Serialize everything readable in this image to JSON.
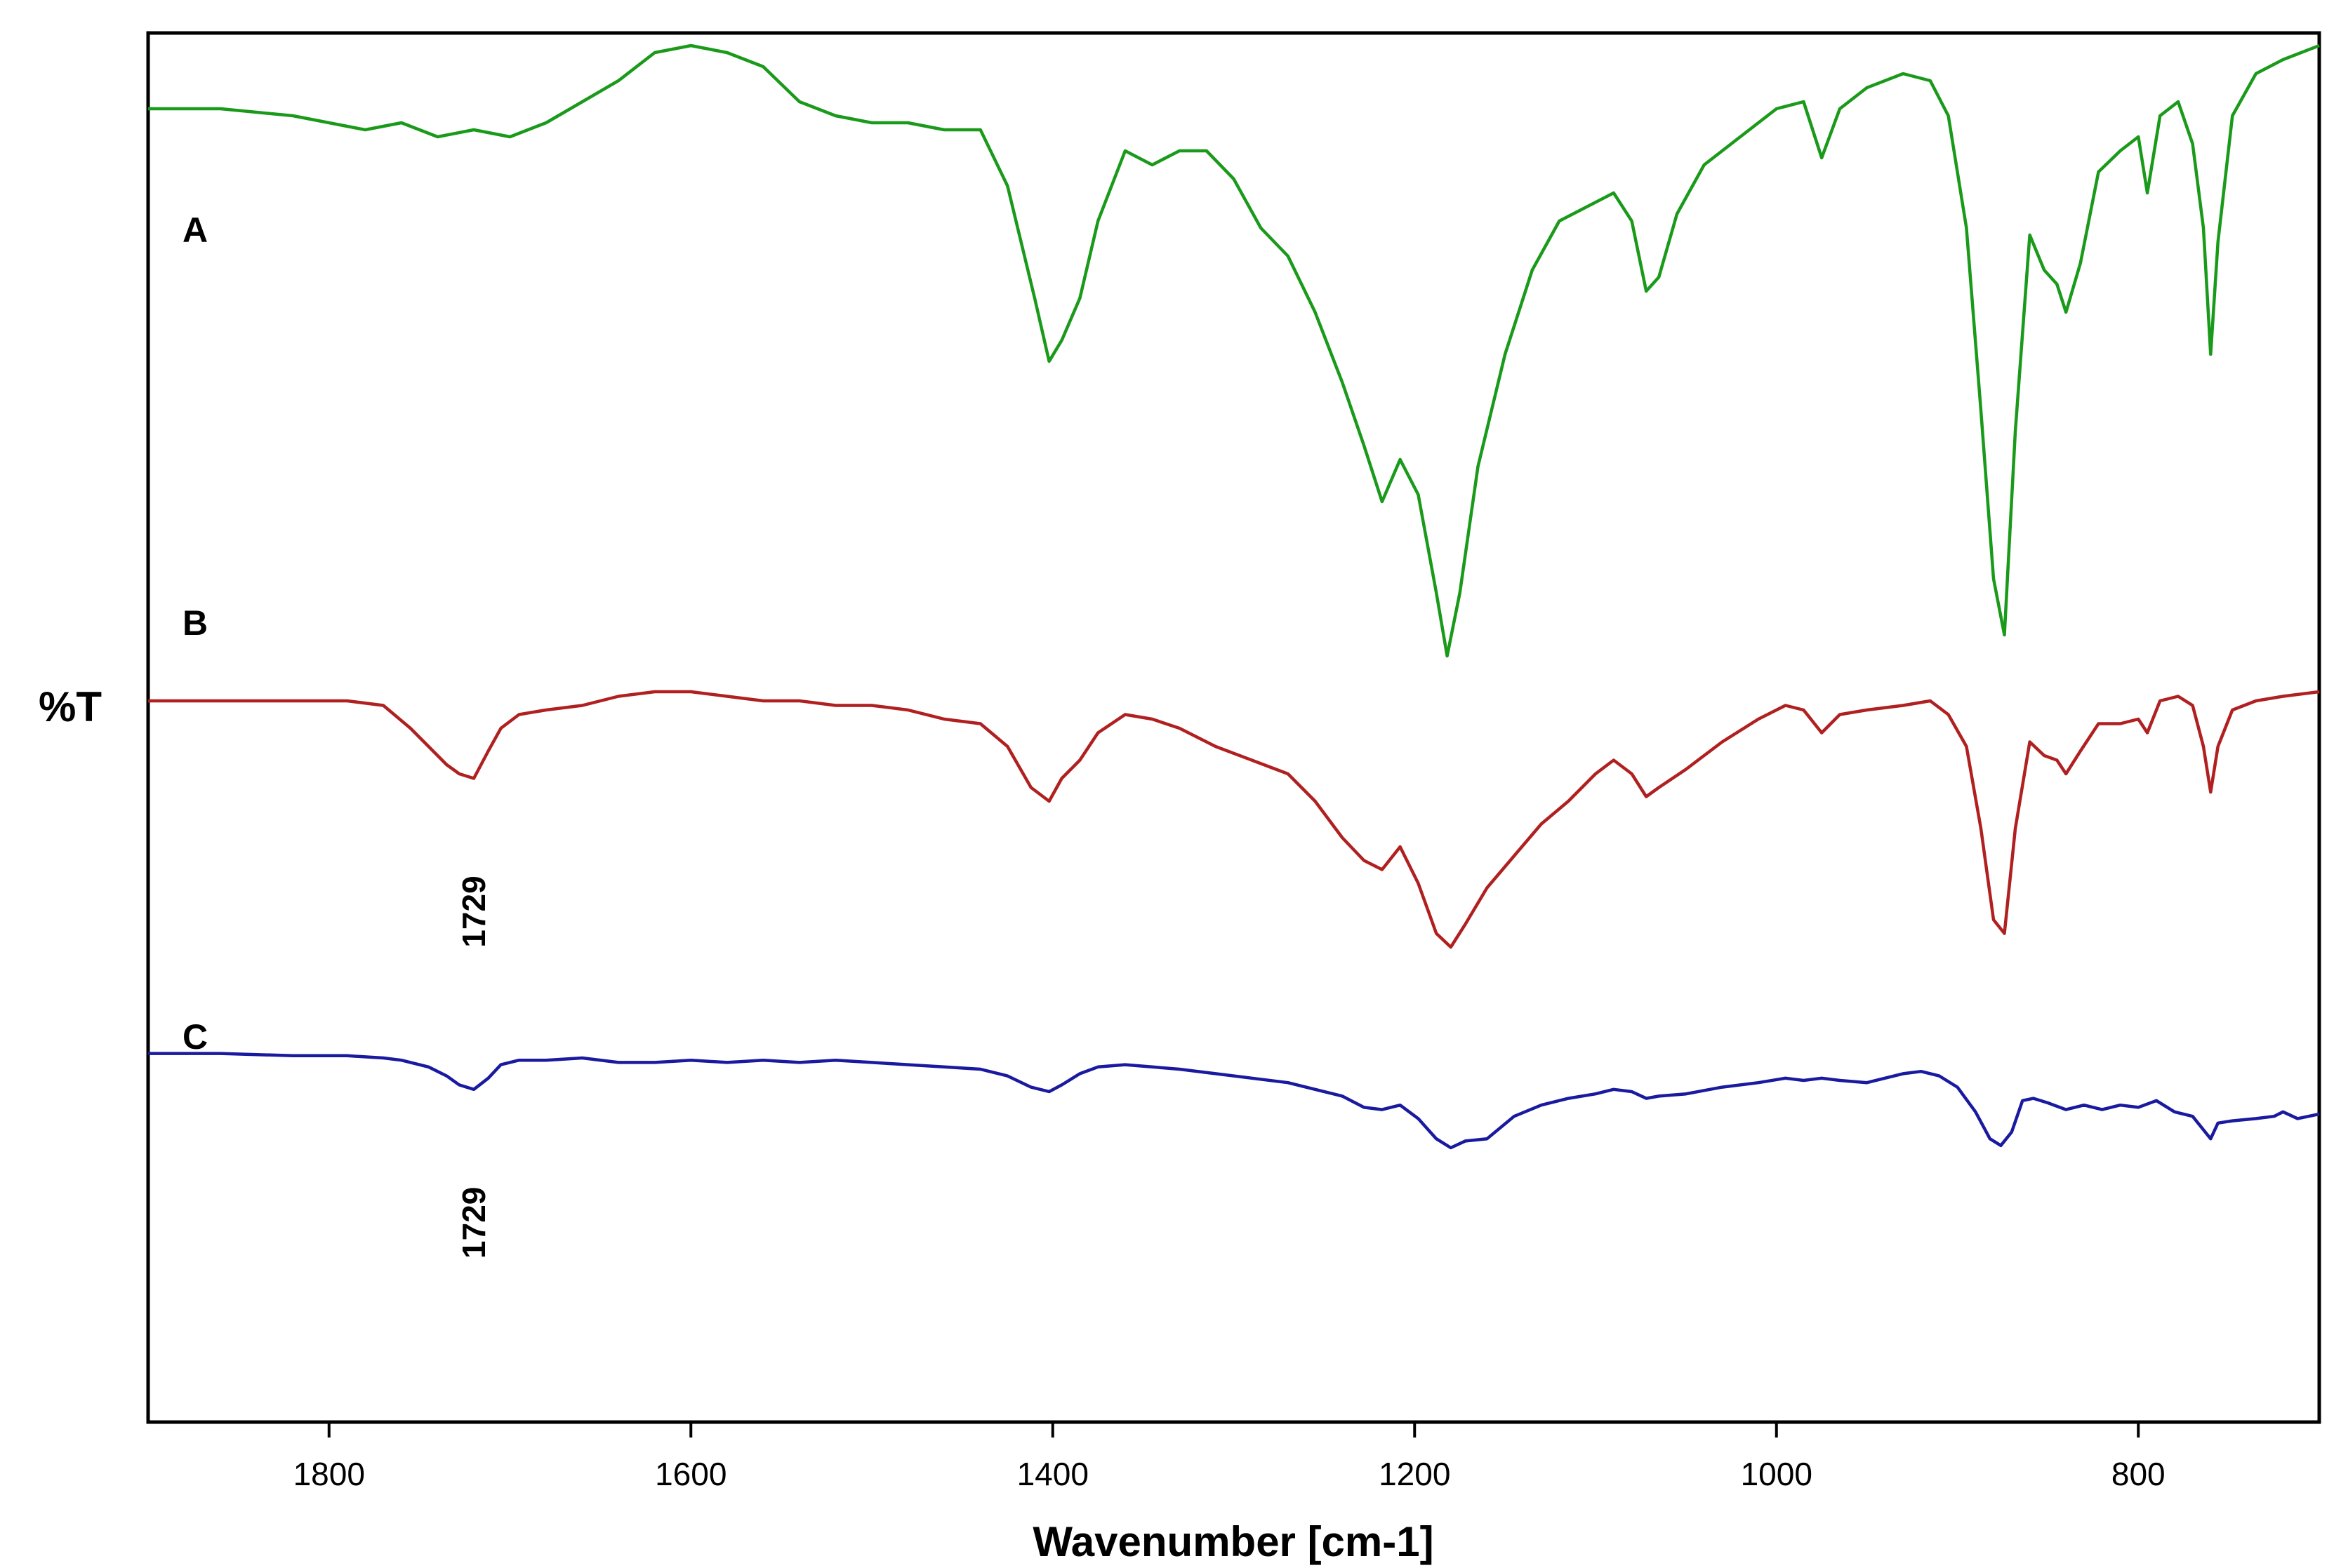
{
  "chart_data": {
    "type": "line",
    "title": "",
    "xlabel": "Wavenumber [cm-1]",
    "ylabel": "%T",
    "xlim": [
      1900,
      700
    ],
    "x_reversed": true,
    "x_ticks": [
      1800,
      1600,
      1400,
      1200,
      1000,
      800
    ],
    "y_ticks": [],
    "grid": false,
    "legend": "none",
    "series": [
      {
        "name": "A",
        "color": "#1a9a1a",
        "x": [
          1900,
          1860,
          1820,
          1780,
          1760,
          1740,
          1720,
          1700,
          1680,
          1660,
          1640,
          1620,
          1600,
          1580,
          1560,
          1540,
          1520,
          1500,
          1480,
          1460,
          1440,
          1425,
          1410,
          1402,
          1395,
          1385,
          1375,
          1360,
          1345,
          1330,
          1315,
          1300,
          1285,
          1270,
          1255,
          1240,
          1228,
          1218,
          1208,
          1198,
          1188,
          1182,
          1175,
          1165,
          1150,
          1135,
          1120,
          1105,
          1090,
          1080,
          1072,
          1065,
          1055,
          1040,
          1020,
          1000,
          985,
          975,
          965,
          950,
          930,
          915,
          905,
          895,
          887,
          880,
          874,
          868,
          860,
          852,
          845,
          840,
          832,
          822,
          810,
          800,
          795,
          788,
          778,
          770,
          764,
          760,
          756,
          748,
          735,
          720,
          700
        ],
        "y": [
          89.5,
          89.5,
          89.0,
          88.0,
          88.5,
          87.5,
          88.0,
          87.5,
          88.5,
          90.0,
          91.5,
          93.5,
          94.0,
          93.5,
          92.5,
          90.0,
          89.0,
          88.5,
          88.5,
          88.0,
          88.0,
          84.0,
          76.0,
          71.5,
          73.0,
          76.0,
          81.5,
          86.5,
          85.5,
          86.5,
          86.5,
          84.5,
          81.0,
          79.0,
          75.0,
          70.0,
          65.5,
          61.5,
          64.5,
          62.0,
          55.0,
          50.5,
          55.0,
          64.0,
          72.0,
          78.0,
          81.5,
          82.5,
          83.5,
          81.5,
          76.5,
          77.5,
          82.0,
          85.5,
          87.5,
          89.5,
          90.0,
          86.0,
          89.5,
          91.0,
          92.0,
          91.5,
          89.0,
          81.0,
          68.0,
          56.0,
          52.0,
          66.5,
          80.5,
          78.0,
          77.0,
          75.0,
          78.5,
          85.0,
          86.5,
          87.5,
          83.5,
          89.0,
          90.0,
          87.0,
          81.0,
          72.0,
          80.0,
          89.0,
          92.0,
          93.0,
          94.0
        ]
      },
      {
        "name": "B",
        "color": "#b02020",
        "x": [
          1900,
          1860,
          1820,
          1790,
          1770,
          1755,
          1745,
          1735,
          1728,
          1720,
          1712,
          1705,
          1695,
          1680,
          1660,
          1640,
          1620,
          1600,
          1580,
          1560,
          1540,
          1520,
          1500,
          1480,
          1460,
          1440,
          1425,
          1412,
          1402,
          1395,
          1385,
          1375,
          1360,
          1345,
          1330,
          1310,
          1290,
          1270,
          1255,
          1240,
          1228,
          1218,
          1208,
          1198,
          1188,
          1180,
          1172,
          1160,
          1145,
          1130,
          1115,
          1100,
          1090,
          1080,
          1072,
          1065,
          1050,
          1030,
          1010,
          995,
          985,
          975,
          965,
          950,
          930,
          915,
          905,
          895,
          887,
          880,
          874,
          868,
          860,
          852,
          845,
          840,
          832,
          822,
          810,
          800,
          795,
          788,
          778,
          770,
          764,
          760,
          756,
          748,
          735,
          720,
          700
        ],
        "y": [
          63.0,
          63.0,
          63.0,
          63.0,
          62.5,
          60.0,
          58.0,
          56.0,
          55.0,
          54.5,
          57.5,
          60.0,
          61.5,
          62.0,
          62.5,
          63.5,
          64.0,
          64.0,
          63.5,
          63.0,
          63.0,
          62.5,
          62.5,
          62.0,
          61.0,
          60.5,
          58.0,
          53.5,
          52.0,
          54.5,
          56.5,
          59.5,
          61.5,
          61.0,
          60.0,
          58.0,
          56.5,
          55.0,
          52.0,
          48.0,
          45.5,
          44.5,
          47.0,
          43.0,
          37.5,
          36.0,
          38.5,
          42.5,
          46.0,
          49.5,
          52.0,
          55.0,
          56.5,
          55.0,
          52.5,
          53.5,
          55.5,
          58.5,
          61.0,
          62.5,
          62.0,
          59.5,
          61.5,
          62.0,
          62.5,
          63.0,
          61.5,
          58.0,
          49.0,
          39.0,
          37.5,
          49.0,
          58.5,
          57.0,
          56.5,
          55.0,
          57.5,
          60.5,
          60.5,
          61.0,
          59.5,
          63.0,
          63.5,
          62.5,
          58.0,
          53.0,
          58.0,
          62.0,
          63.0,
          63.5,
          64.0
        ]
      },
      {
        "name": "C",
        "color": "#1a1aa0",
        "x": [
          1900,
          1860,
          1820,
          1790,
          1770,
          1760,
          1745,
          1735,
          1728,
          1720,
          1712,
          1705,
          1695,
          1680,
          1660,
          1640,
          1620,
          1600,
          1580,
          1560,
          1540,
          1520,
          1500,
          1480,
          1460,
          1440,
          1425,
          1412,
          1402,
          1395,
          1385,
          1375,
          1360,
          1345,
          1330,
          1310,
          1290,
          1270,
          1255,
          1240,
          1228,
          1218,
          1208,
          1198,
          1188,
          1180,
          1172,
          1160,
          1145,
          1130,
          1115,
          1100,
          1090,
          1080,
          1072,
          1065,
          1050,
          1030,
          1010,
          995,
          985,
          975,
          965,
          950,
          930,
          920,
          910,
          900,
          890,
          882,
          876,
          870,
          864,
          858,
          850,
          840,
          830,
          820,
          810,
          800,
          790,
          780,
          770,
          764,
          760,
          756,
          748,
          735,
          725,
          720,
          712,
          700
        ],
        "y": [
          31.0,
          31.0,
          30.5,
          30.5,
          30.0,
          29.5,
          28.0,
          26.0,
          24.0,
          23.0,
          25.5,
          28.5,
          29.5,
          29.5,
          30.0,
          29.0,
          29.0,
          29.5,
          29.0,
          29.5,
          29.0,
          29.5,
          29.0,
          28.5,
          28.0,
          27.5,
          26.0,
          23.5,
          22.5,
          24.0,
          26.5,
          28.0,
          28.5,
          28.0,
          27.5,
          26.5,
          25.5,
          24.5,
          23.0,
          21.5,
          19.0,
          18.5,
          19.5,
          16.5,
          12.0,
          10.0,
          11.5,
          12.0,
          17.0,
          19.5,
          21.0,
          22.0,
          23.0,
          22.5,
          21.0,
          21.5,
          22.0,
          23.5,
          24.5,
          25.5,
          25.0,
          25.5,
          25.0,
          24.5,
          26.5,
          27.0,
          26.0,
          23.5,
          18.0,
          12.0,
          10.5,
          13.5,
          20.5,
          21.0,
          20.0,
          18.5,
          19.5,
          18.5,
          19.5,
          19.0,
          20.5,
          18.0,
          17.0,
          14.0,
          12.0,
          15.5,
          16.0,
          16.5,
          17.0,
          18.0,
          16.5,
          17.5
        ]
      }
    ],
    "series_labels": [
      "A",
      "B",
      "C"
    ],
    "annotations": [
      {
        "text": "1729",
        "series": "B",
        "x": 1720
      },
      {
        "text": "1729",
        "series": "C",
        "x": 1720
      }
    ]
  }
}
